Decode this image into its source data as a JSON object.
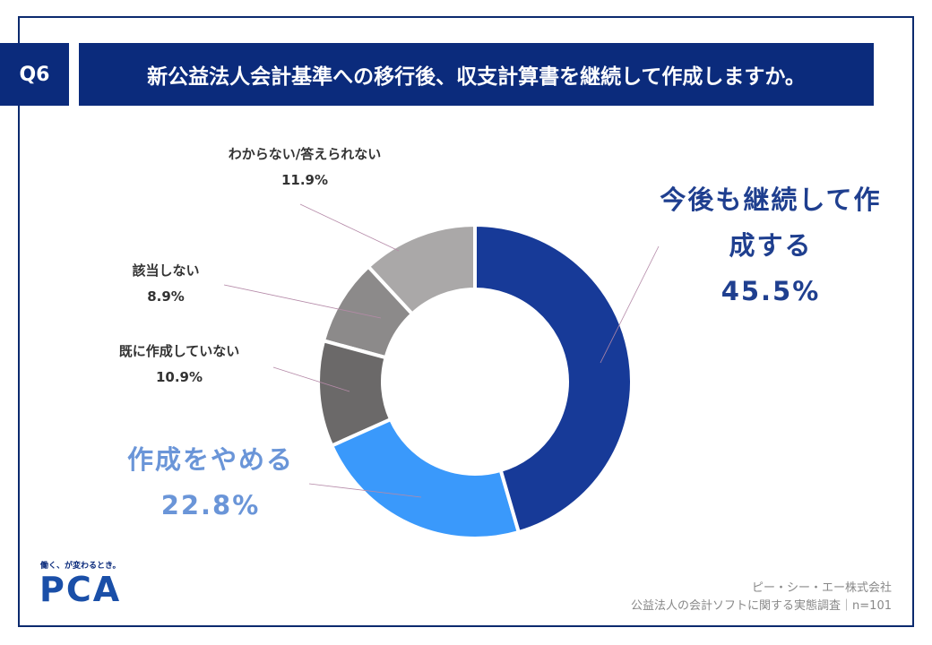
{
  "header": {
    "badge": "Q6",
    "title": "新公益法人会計基準への移行後、収支計算書を継続して作成しますか。"
  },
  "chart_data": {
    "type": "pie",
    "categories": [
      "今後も継続して作成する",
      "作成をやめる",
      "既に作成していない",
      "該当しない",
      "わからない/答えられない"
    ],
    "values": [
      45.5,
      22.8,
      10.9,
      8.9,
      11.9
    ],
    "value_labels": [
      "45.5%",
      "22.8%",
      "10.9%",
      "8.9%",
      "11.9%"
    ],
    "colors": [
      "#173a98",
      "#3a99fb",
      "#6b6969",
      "#8c8a8a",
      "#aaa8a8"
    ]
  },
  "logo": {
    "tagline": "働く、が変わるとき。",
    "brand": "PCA"
  },
  "footer": {
    "company": "ピー・シー・エー株式会社",
    "survey": "公益法人の会計ソフトに関する実態調査｜n=101"
  }
}
